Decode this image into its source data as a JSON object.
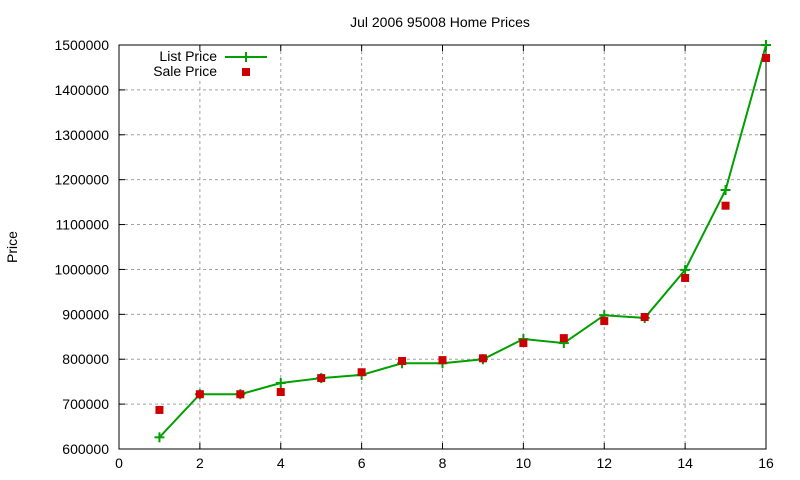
{
  "chart_data": {
    "type": "line",
    "title": "Jul 2006 95008 Home Prices",
    "xlabel": "",
    "ylabel": "Price",
    "xlim": [
      0,
      16
    ],
    "ylim": [
      600000,
      1500000
    ],
    "x_ticks": [
      "0",
      "2",
      "4",
      "6",
      "8",
      "10",
      "12",
      "14",
      "16"
    ],
    "y_ticks": [
      "600000",
      "700000",
      "800000",
      "900000",
      "1000000",
      "1100000",
      "1200000",
      "1300000",
      "1400000",
      "1500000"
    ],
    "grid": true,
    "legend_position": "top-left",
    "x": [
      1,
      2,
      3,
      4,
      5,
      6,
      7,
      8,
      9,
      10,
      11,
      12,
      13,
      14,
      15,
      16
    ],
    "series": [
      {
        "name": "List Price",
        "style": "linespoints",
        "marker": "plus",
        "color": "#00a000",
        "values": [
          626000,
          722000,
          722000,
          747000,
          758000,
          765000,
          791000,
          791000,
          800000,
          845000,
          836000,
          898000,
          892000,
          999000,
          1177000,
          1500000
        ]
      },
      {
        "name": "Sale Price",
        "style": "points",
        "marker": "square",
        "color": "#cc0000",
        "values": [
          687000,
          722000,
          722000,
          727000,
          758000,
          771000,
          796000,
          798000,
          802000,
          836000,
          847000,
          885000,
          894000,
          981000,
          1142000,
          1471000
        ]
      }
    ]
  }
}
